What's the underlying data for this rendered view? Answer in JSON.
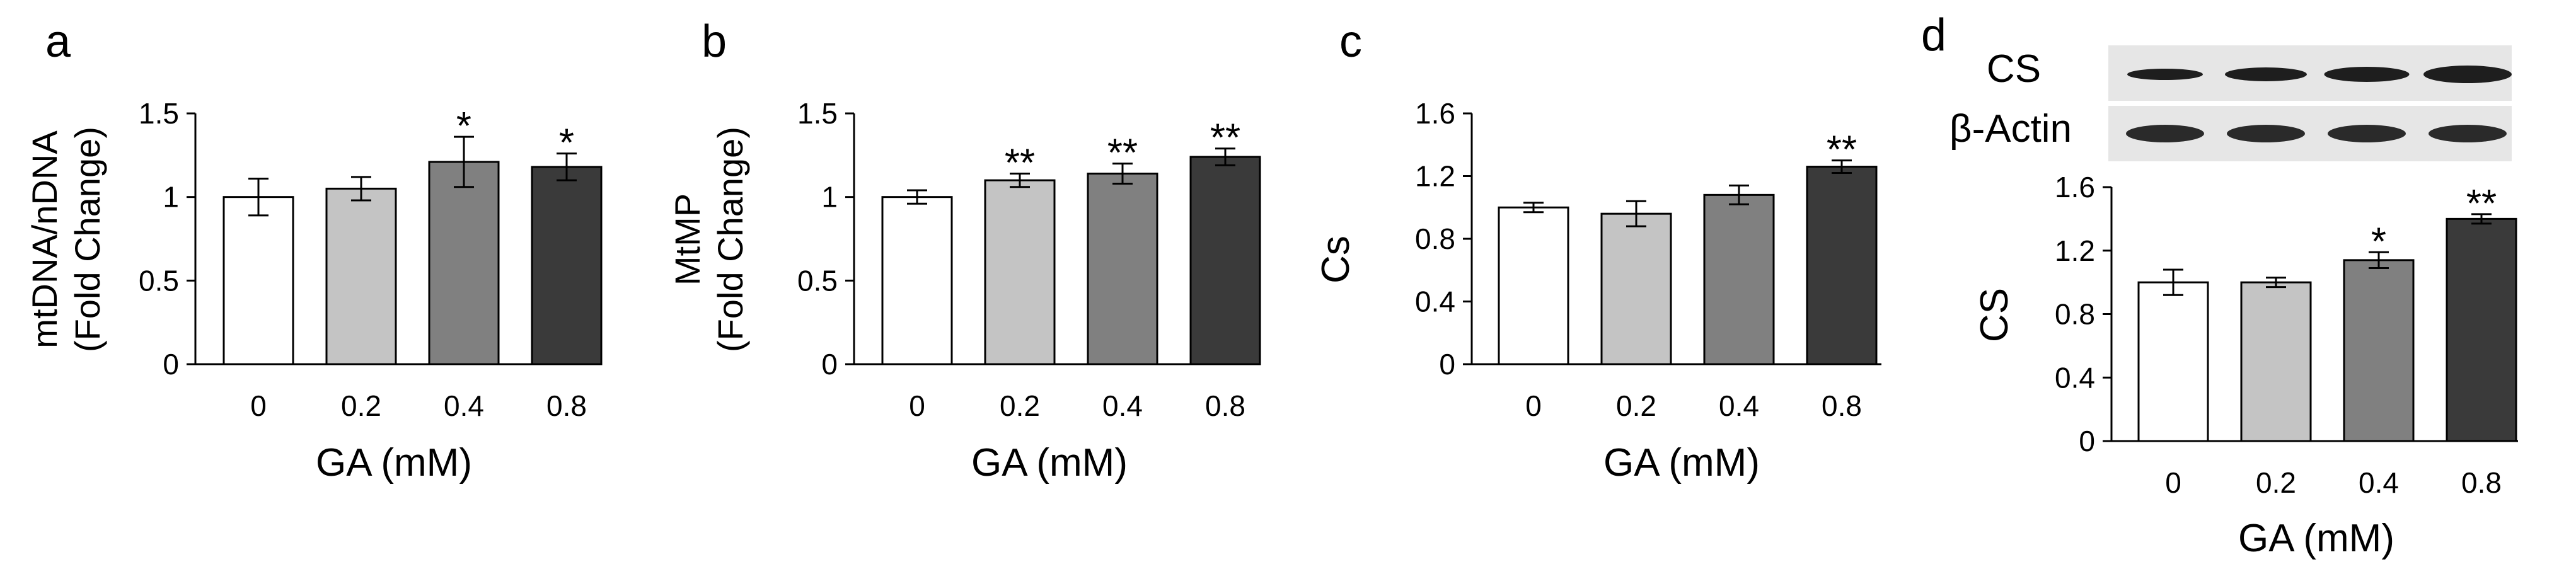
{
  "chart_data": [
    {
      "panel": "a",
      "type": "bar",
      "categories": [
        "0",
        "0.2",
        "0.4",
        "0.8"
      ],
      "values": [
        1.0,
        1.05,
        1.21,
        1.18
      ],
      "errors": [
        0.11,
        0.07,
        0.15,
        0.08
      ],
      "significance": [
        "",
        "",
        "*",
        "*"
      ],
      "colors": [
        "#ffffff",
        "#c4c4c4",
        "#808080",
        "#3a3a3a"
      ],
      "ylabel_lines": [
        "mtDNA/nDNA",
        "(Fold Change)"
      ],
      "xlabel": "GA (mM)",
      "ylim": [
        0,
        1.5
      ],
      "yticks": [
        "0",
        "0.5",
        "1",
        "1.5"
      ]
    },
    {
      "panel": "b",
      "type": "bar",
      "categories": [
        "0",
        "0.2",
        "0.4",
        "0.8"
      ],
      "values": [
        1.0,
        1.1,
        1.14,
        1.24
      ],
      "errors": [
        0.04,
        0.04,
        0.06,
        0.05
      ],
      "significance": [
        "",
        "**",
        "**",
        "**"
      ],
      "colors": [
        "#ffffff",
        "#c4c4c4",
        "#808080",
        "#3a3a3a"
      ],
      "ylabel_lines": [
        "MtMP",
        "(Fold Change)"
      ],
      "xlabel": "GA (mM)",
      "ylim": [
        0,
        1.5
      ],
      "yticks": [
        "0",
        "0.5",
        "1",
        "1.5"
      ]
    },
    {
      "panel": "c",
      "type": "bar",
      "categories": [
        "0",
        "0.2",
        "0.4",
        "0.8"
      ],
      "values": [
        1.0,
        0.96,
        1.08,
        1.26
      ],
      "errors": [
        0.03,
        0.08,
        0.06,
        0.04
      ],
      "significance": [
        "",
        "",
        "",
        "**"
      ],
      "colors": [
        "#ffffff",
        "#c4c4c4",
        "#808080",
        "#3a3a3a"
      ],
      "ylabel_lines": [
        "Cs"
      ],
      "xlabel": "GA (mM)",
      "ylim": [
        0,
        1.6
      ],
      "yticks": [
        "0",
        "0.4",
        "0.8",
        "1.2",
        "1.6"
      ]
    },
    {
      "panel": "d",
      "type": "bar",
      "categories": [
        "0",
        "0.2",
        "0.4",
        "0.8"
      ],
      "values": [
        1.0,
        1.0,
        1.14,
        1.4
      ],
      "errors": [
        0.08,
        0.03,
        0.05,
        0.03
      ],
      "significance": [
        "",
        "",
        "*",
        "**"
      ],
      "colors": [
        "#ffffff",
        "#c4c4c4",
        "#808080",
        "#3a3a3a"
      ],
      "ylabel_lines": [
        "CS"
      ],
      "xlabel": "GA (mM)",
      "ylim": [
        0,
        1.6
      ],
      "yticks": [
        "0",
        "0.4",
        "0.8",
        "1.2",
        "1.6"
      ],
      "blot_labels": [
        "CS",
        "β-Actin"
      ]
    }
  ]
}
